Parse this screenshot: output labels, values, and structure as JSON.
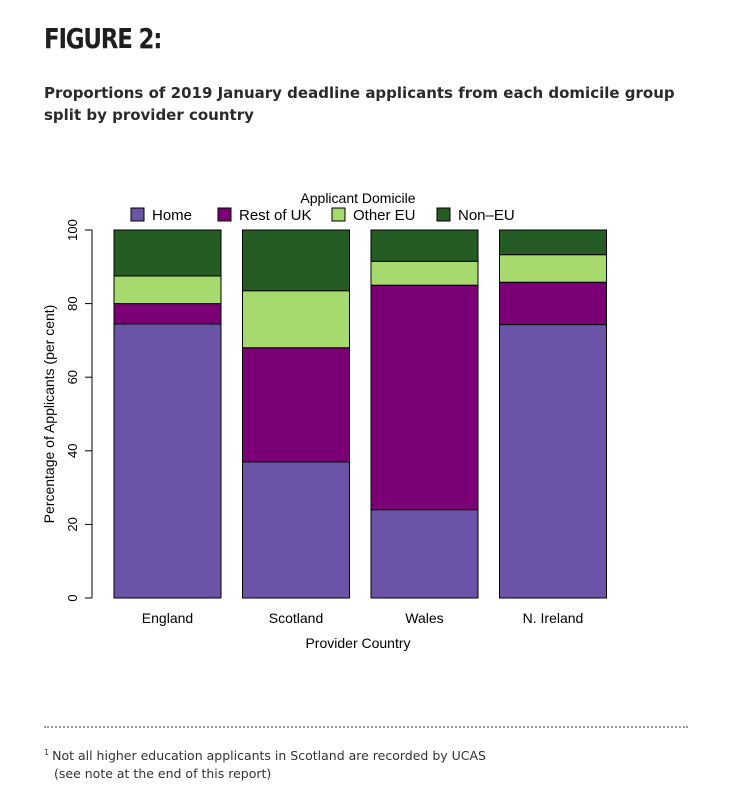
{
  "heading": "FIGURE 2:",
  "subtitle": "Proportions of 2019 January deadline applicants from each domicile group split by provider country",
  "footnote": {
    "marker": "1",
    "line1": "Not all higher education applicants in Scotland are recorded by UCAS",
    "line2": "(see note at the end of this report)"
  },
  "chart_data": {
    "type": "bar",
    "stacked": true,
    "xlabel": "Provider Country",
    "ylabel": "Percentage of Applicants (per cent)",
    "ylim": [
      0,
      100
    ],
    "yticks": [
      0,
      20,
      40,
      60,
      80,
      100
    ],
    "grid": false,
    "legend": {
      "title": "Applicant Domicile",
      "placement": "top"
    },
    "categories": [
      "England",
      "Scotland",
      "Wales",
      "N. Ireland"
    ],
    "series": [
      {
        "name": "Home",
        "color": "#6b54a8",
        "values": [
          74.5,
          37.0,
          24.0,
          74.3
        ]
      },
      {
        "name": "Rest of UK",
        "color": "#7b0075",
        "values": [
          5.5,
          31.0,
          61.0,
          11.5
        ]
      },
      {
        "name": "Other EU",
        "color": "#a6d96e",
        "values": [
          7.5,
          15.5,
          6.5,
          7.5
        ]
      },
      {
        "name": "Non–EU",
        "color": "#245c24",
        "values": [
          12.5,
          16.5,
          8.5,
          6.7
        ]
      }
    ]
  }
}
